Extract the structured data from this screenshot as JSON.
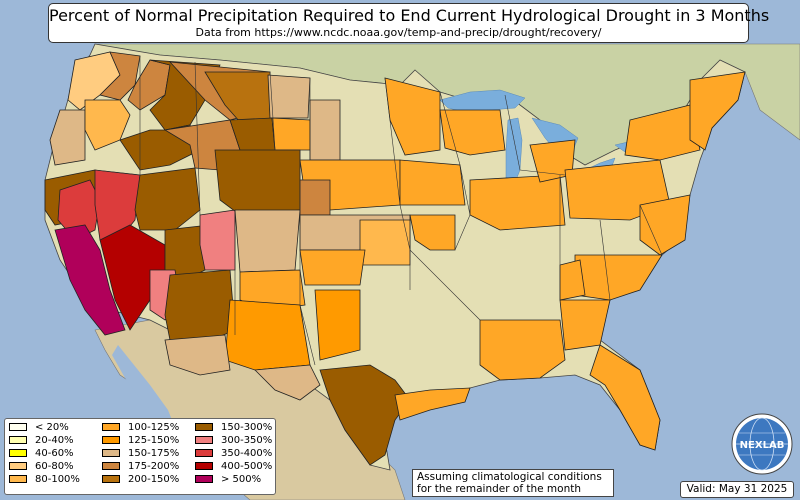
{
  "title": "Percent of Normal Precipitation Required to End Current Hydrological Drought in 3 Months",
  "subtitle": "Data from https://www.ncdc.noaa.gov/temp-and-precip/drought/recovery/",
  "legend": [
    {
      "label": "< 20%",
      "color": "#fffff0"
    },
    {
      "label": "20-40%",
      "color": "#ffffb0"
    },
    {
      "label": "40-60%",
      "color": "#ffff00"
    },
    {
      "label": "60-80%",
      "color": "#ffcc80"
    },
    {
      "label": "80-100%",
      "color": "#ffb84d"
    },
    {
      "label": "100-125%",
      "color": "#ffa726"
    },
    {
      "label": "125-150%",
      "color": "#ff9a00"
    },
    {
      "label": "150-175%",
      "color": "#deb887"
    },
    {
      "label": "175-200%",
      "color": "#cd853f"
    },
    {
      "label": "200-150%",
      "color": "#b8720f"
    },
    {
      "label": "150-300%",
      "color": "#9a5c00"
    },
    {
      "label": "300-350%",
      "color": "#f08080"
    },
    {
      "label": "350-400%",
      "color": "#dc3c3c"
    },
    {
      "label": "400-500%",
      "color": "#b40000"
    },
    {
      "label": "> 500%",
      "color": "#b0005a"
    }
  ],
  "note": {
    "line1": "Assuming climatological conditions",
    "line2": "for the remainder of the month"
  },
  "valid": "Valid: May 31 2025",
  "logo": {
    "text": "NEXLAB",
    "icon": "globe-icon"
  },
  "colors": {
    "ocean": "#9db8d8",
    "land": "#e4dfb4",
    "canada": "#c9d2a4",
    "mexico": "#d9c9a0",
    "lake": "#7aaedc"
  }
}
